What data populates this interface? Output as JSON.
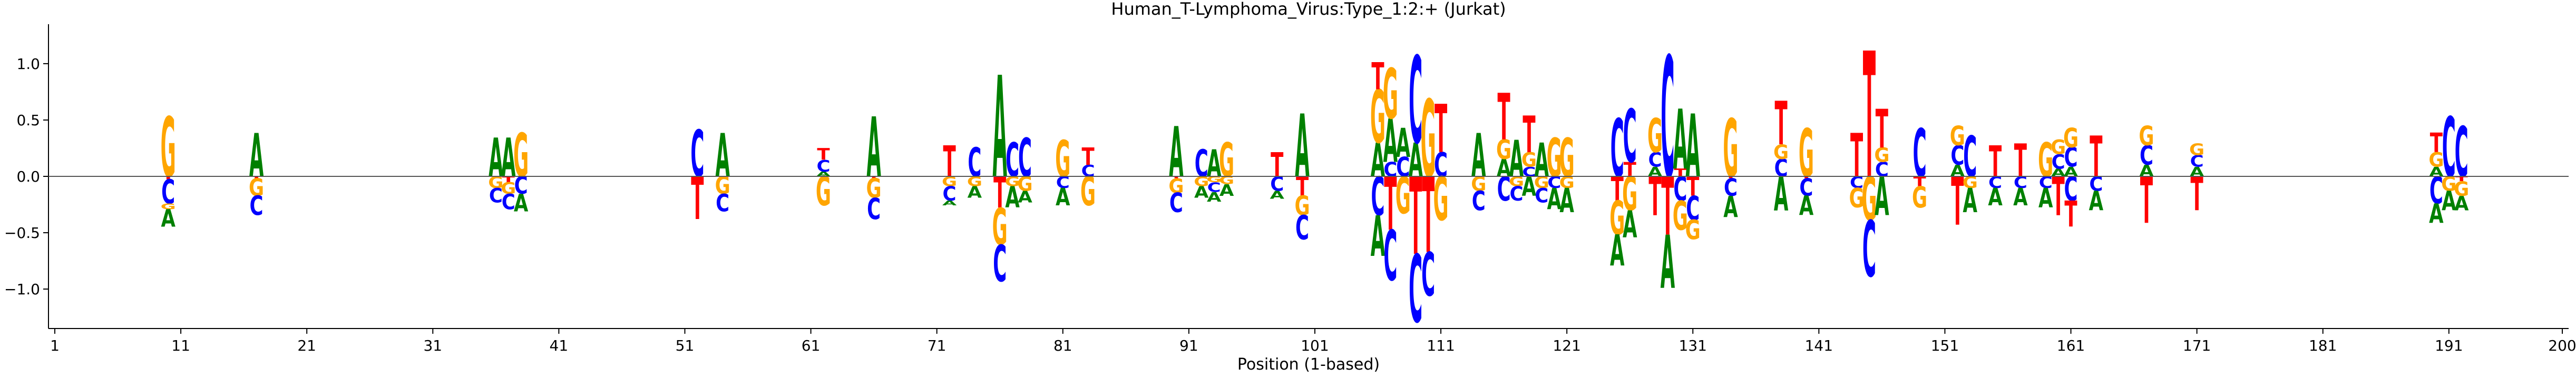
{
  "chart_data": {
    "type": "sequence_logo",
    "title": "Human_T-Lymphoma_Virus:Type_1:2:+  (Jurkat)",
    "xlabel": "Position (1-based)",
    "ylabel": "",
    "xlim": [
      1,
      200
    ],
    "ylim": [
      -1.35,
      1.35
    ],
    "x_ticks": [
      1,
      11,
      21,
      31,
      41,
      51,
      61,
      71,
      81,
      91,
      101,
      111,
      121,
      131,
      141,
      151,
      161,
      171,
      181,
      191,
      200
    ],
    "y_ticks": [
      -1.0,
      -0.5,
      0.0,
      0.5,
      1.0
    ],
    "y_tick_labels": [
      "−1.0",
      "−0.5",
      "0.0",
      "0.5",
      "1.0"
    ],
    "zero_line": true,
    "colors": {
      "A": "#008000",
      "C": "#0000ff",
      "G": "#ffa500",
      "T": "#ff0000"
    },
    "columns": [
      {
        "pos": 10,
        "up": [
          [
            "G",
            0.62
          ]
        ],
        "down": [
          [
            "T",
            0.03
          ],
          [
            "C",
            0.25
          ],
          [
            "G",
            0.06
          ],
          [
            "A",
            0.18
          ]
        ]
      },
      {
        "pos": 17,
        "up": [
          [
            "A",
            0.45
          ]
        ],
        "down": [
          [
            "T",
            0.02
          ],
          [
            "G",
            0.18
          ],
          [
            "C",
            0.2
          ]
        ]
      },
      {
        "pos": 36,
        "up": [
          [
            "A",
            0.4
          ]
        ],
        "down": [
          [
            "G",
            0.12
          ],
          [
            "C",
            0.15
          ]
        ]
      },
      {
        "pos": 37,
        "up": [
          [
            "A",
            0.4
          ]
        ],
        "down": [
          [
            "T",
            0.06
          ],
          [
            "G",
            0.12
          ],
          [
            "C",
            0.16
          ]
        ]
      },
      {
        "pos": 38,
        "up": [
          [
            "G",
            0.45
          ]
        ],
        "down": [
          [
            "C",
            0.18
          ],
          [
            "A",
            0.18
          ]
        ]
      },
      {
        "pos": 52,
        "up": [
          [
            "C",
            0.48
          ]
        ],
        "down": [
          [
            "T",
            0.44
          ]
        ]
      },
      {
        "pos": 54,
        "up": [
          [
            "A",
            0.45
          ]
        ],
        "down": [
          [
            "G",
            0.18
          ],
          [
            "C",
            0.18
          ]
        ]
      },
      {
        "pos": 62,
        "up": [
          [
            "A",
            0.05
          ],
          [
            "C",
            0.12
          ],
          [
            "T",
            0.12
          ]
        ],
        "down": [
          [
            "G",
            0.3
          ]
        ]
      },
      {
        "pos": 66,
        "up": [
          [
            "A",
            0.62
          ]
        ],
        "down": [
          [
            "T",
            0.02
          ],
          [
            "G",
            0.2
          ],
          [
            "C",
            0.22
          ]
        ]
      },
      {
        "pos": 72,
        "up": [
          [
            "T",
            0.32
          ]
        ],
        "down": [
          [
            "G",
            0.1
          ],
          [
            "C",
            0.15
          ],
          [
            "A",
            0.05
          ]
        ]
      },
      {
        "pos": 74,
        "up": [
          [
            "C",
            0.3
          ]
        ],
        "down": [
          [
            "G",
            0.1
          ],
          [
            "A",
            0.12
          ]
        ]
      },
      {
        "pos": 76,
        "up": [
          [
            "A",
            1.05
          ]
        ],
        "down": [
          [
            "T",
            0.32
          ],
          [
            "G",
            0.38
          ],
          [
            "C",
            0.38
          ]
        ]
      },
      {
        "pos": 77,
        "up": [
          [
            "C",
            0.35
          ]
        ],
        "down": [
          [
            "G",
            0.1
          ],
          [
            "A",
            0.22
          ]
        ]
      },
      {
        "pos": 78,
        "up": [
          [
            "C",
            0.4
          ]
        ],
        "down": [
          [
            "G",
            0.15
          ],
          [
            "A",
            0.12
          ]
        ]
      },
      {
        "pos": 81,
        "up": [
          [
            "G",
            0.38
          ]
        ],
        "down": [
          [
            "C",
            0.12
          ],
          [
            "A",
            0.18
          ]
        ]
      },
      {
        "pos": 83,
        "up": [
          [
            "C",
            0.12
          ],
          [
            "T",
            0.18
          ]
        ],
        "down": [
          [
            "G",
            0.3
          ]
        ]
      },
      {
        "pos": 90,
        "up": [
          [
            "A",
            0.52
          ]
        ],
        "down": [
          [
            "T",
            0.02
          ],
          [
            "G",
            0.15
          ],
          [
            "C",
            0.2
          ]
        ]
      },
      {
        "pos": 92,
        "up": [
          [
            "C",
            0.28
          ]
        ],
        "down": [
          [
            "G",
            0.1
          ],
          [
            "A",
            0.12
          ]
        ]
      },
      {
        "pos": 93,
        "up": [
          [
            "A",
            0.28
          ]
        ],
        "down": [
          [
            "G",
            0.06
          ],
          [
            "C",
            0.1
          ],
          [
            "A",
            0.1
          ]
        ]
      },
      {
        "pos": 94,
        "up": [
          [
            "G",
            0.35
          ]
        ],
        "down": [
          [
            "G",
            0.08
          ],
          [
            "A",
            0.12
          ]
        ]
      },
      {
        "pos": 98,
        "up": [
          [
            "T",
            0.25
          ]
        ],
        "down": [
          [
            "C",
            0.15
          ],
          [
            "A",
            0.08
          ]
        ]
      },
      {
        "pos": 100,
        "up": [
          [
            "A",
            0.65
          ]
        ],
        "down": [
          [
            "T",
            0.2
          ],
          [
            "G",
            0.2
          ],
          [
            "C",
            0.25
          ]
        ]
      },
      {
        "pos": 106,
        "up": [
          [
            "A",
            0.35
          ],
          [
            "G",
            0.55
          ],
          [
            "T",
            0.28
          ]
        ],
        "down": [
          [
            "C",
            0.4
          ],
          [
            "A",
            0.42
          ]
        ]
      },
      {
        "pos": 107,
        "up": [
          [
            "C",
            0.15
          ],
          [
            "A",
            0.45
          ],
          [
            "G",
            0.52
          ]
        ],
        "down": [
          [
            "T",
            0.55
          ],
          [
            "C",
            0.52
          ]
        ]
      },
      {
        "pos": 108,
        "up": [
          [
            "C",
            0.2
          ],
          [
            "A",
            0.3
          ]
        ],
        "down": [
          [
            "G",
            0.38
          ]
        ]
      },
      {
        "pos": 109,
        "up": [
          [
            "A",
            0.35
          ],
          [
            "C",
            0.9
          ]
        ],
        "down": [
          [
            "T",
            0.8
          ],
          [
            "C",
            0.7
          ]
        ]
      },
      {
        "pos": 110,
        "up": [
          [
            "G",
            0.8
          ]
        ],
        "down": [
          [
            "T",
            0.78
          ],
          [
            "C",
            0.45
          ]
        ]
      },
      {
        "pos": 111,
        "up": [
          [
            "C",
            0.25
          ],
          [
            "T",
            0.5
          ]
        ],
        "down": [
          [
            "G",
            0.45
          ]
        ]
      },
      {
        "pos": 114,
        "up": [
          [
            "A",
            0.45
          ]
        ],
        "down": [
          [
            "G",
            0.15
          ],
          [
            "C",
            0.2
          ]
        ]
      },
      {
        "pos": 116,
        "up": [
          [
            "A",
            0.18
          ],
          [
            "G",
            0.2
          ],
          [
            "T",
            0.48
          ]
        ],
        "down": [
          [
            "C",
            0.25
          ]
        ]
      },
      {
        "pos": 117,
        "up": [
          [
            "A",
            0.38
          ]
        ],
        "down": [
          [
            "G",
            0.1
          ],
          [
            "C",
            0.15
          ]
        ]
      },
      {
        "pos": 118,
        "up": [
          [
            "C",
            0.1
          ],
          [
            "G",
            0.15
          ],
          [
            "T",
            0.38
          ]
        ],
        "down": [
          [
            "A",
            0.2
          ]
        ]
      },
      {
        "pos": 119,
        "up": [
          [
            "A",
            0.35
          ]
        ],
        "down": [
          [
            "G",
            0.12
          ],
          [
            "C",
            0.15
          ]
        ]
      },
      {
        "pos": 120,
        "up": [
          [
            "G",
            0.4
          ]
        ],
        "down": [
          [
            "C",
            0.12
          ],
          [
            "A",
            0.22
          ]
        ]
      },
      {
        "pos": 121,
        "up": [
          [
            "G",
            0.4
          ]
        ],
        "down": [
          [
            "G",
            0.12
          ],
          [
            "A",
            0.25
          ]
        ]
      },
      {
        "pos": 125,
        "up": [
          [
            "C",
            0.6
          ]
        ],
        "down": [
          [
            "T",
            0.25
          ],
          [
            "G",
            0.35
          ],
          [
            "A",
            0.32
          ]
        ]
      },
      {
        "pos": 126,
        "up": [
          [
            "T",
            0.15
          ],
          [
            "C",
            0.55
          ]
        ],
        "down": [
          [
            "G",
            0.35
          ],
          [
            "A",
            0.28
          ]
        ]
      },
      {
        "pos": 128,
        "up": [
          [
            "A",
            0.1
          ],
          [
            "C",
            0.15
          ],
          [
            "G",
            0.35
          ]
        ],
        "down": [
          [
            "T",
            0.4
          ]
        ]
      },
      {
        "pos": 129,
        "up": [
          [
            "C",
            1.25
          ]
        ],
        "down": [
          [
            "T",
            0.6
          ],
          [
            "A",
            0.55
          ]
        ]
      },
      {
        "pos": 130,
        "up": [
          [
            "T",
            0.08
          ],
          [
            "A",
            0.62
          ]
        ],
        "down": [
          [
            "C",
            0.25
          ],
          [
            "G",
            0.3
          ]
        ]
      },
      {
        "pos": 131,
        "up": [
          [
            "A",
            0.65
          ]
        ],
        "down": [
          [
            "T",
            0.2
          ],
          [
            "C",
            0.25
          ],
          [
            "G",
            0.2
          ]
        ]
      },
      {
        "pos": 134,
        "up": [
          [
            "G",
            0.6
          ]
        ],
        "down": [
          [
            "T",
            0.02
          ],
          [
            "C",
            0.18
          ],
          [
            "A",
            0.22
          ]
        ]
      },
      {
        "pos": 138,
        "up": [
          [
            "C",
            0.18
          ],
          [
            "G",
            0.15
          ],
          [
            "T",
            0.45
          ]
        ],
        "down": [
          [
            "A",
            0.35
          ]
        ]
      },
      {
        "pos": 140,
        "up": [
          [
            "G",
            0.5
          ]
        ],
        "down": [
          [
            "T",
            0.02
          ],
          [
            "C",
            0.18
          ],
          [
            "A",
            0.2
          ]
        ]
      },
      {
        "pos": 144,
        "up": [
          [
            "T",
            0.45
          ]
        ],
        "down": [
          [
            "C",
            0.12
          ],
          [
            "G",
            0.2
          ]
        ]
      },
      {
        "pos": 145,
        "up": [
          [
            "T",
            1.3
          ]
        ],
        "down": [
          [
            "G",
            0.45
          ],
          [
            "C",
            0.58
          ]
        ]
      },
      {
        "pos": 146,
        "up": [
          [
            "C",
            0.15
          ],
          [
            "G",
            0.15
          ],
          [
            "T",
            0.4
          ]
        ],
        "down": [
          [
            "A",
            0.4
          ]
        ]
      },
      {
        "pos": 149,
        "up": [
          [
            "C",
            0.5
          ]
        ],
        "down": [
          [
            "T",
            0.1
          ],
          [
            "G",
            0.22
          ]
        ]
      },
      {
        "pos": 152,
        "up": [
          [
            "A",
            0.12
          ],
          [
            "C",
            0.2
          ],
          [
            "G",
            0.2
          ]
        ],
        "down": [
          [
            "T",
            0.5
          ]
        ]
      },
      {
        "pos": 153,
        "up": [
          [
            "C",
            0.42
          ]
        ],
        "down": [
          [
            "G",
            0.12
          ],
          [
            "A",
            0.25
          ]
        ]
      },
      {
        "pos": 155,
        "up": [
          [
            "T",
            0.32
          ]
        ],
        "down": [
          [
            "C",
            0.12
          ],
          [
            "A",
            0.18
          ]
        ]
      },
      {
        "pos": 157,
        "up": [
          [
            "T",
            0.34
          ]
        ],
        "down": [
          [
            "C",
            0.12
          ],
          [
            "A",
            0.18
          ]
        ]
      },
      {
        "pos": 159,
        "up": [
          [
            "G",
            0.35
          ]
        ],
        "down": [
          [
            "C",
            0.12
          ],
          [
            "A",
            0.2
          ]
        ]
      },
      {
        "pos": 160,
        "up": [
          [
            "A",
            0.08
          ],
          [
            "C",
            0.15
          ],
          [
            "G",
            0.15
          ]
        ],
        "down": [
          [
            "T",
            0.4
          ]
        ]
      },
      {
        "pos": 161,
        "up": [
          [
            "A",
            0.1
          ],
          [
            "C",
            0.2
          ],
          [
            "G",
            0.2
          ]
        ],
        "down": [
          [
            "C",
            0.25
          ],
          [
            "T",
            0.27
          ]
        ]
      },
      {
        "pos": 163,
        "up": [
          [
            "T",
            0.42
          ]
        ],
        "down": [
          [
            "C",
            0.15
          ],
          [
            "A",
            0.2
          ]
        ]
      },
      {
        "pos": 167,
        "up": [
          [
            "A",
            0.12
          ],
          [
            "C",
            0.2
          ],
          [
            "G",
            0.2
          ]
        ],
        "down": [
          [
            "T",
            0.48
          ]
        ]
      },
      {
        "pos": 171,
        "up": [
          [
            "A",
            0.1
          ],
          [
            "C",
            0.12
          ],
          [
            "G",
            0.12
          ]
        ],
        "down": [
          [
            "T",
            0.35
          ]
        ]
      },
      {
        "pos": 190,
        "up": [
          [
            "A",
            0.1
          ],
          [
            "G",
            0.15
          ],
          [
            "T",
            0.2
          ]
        ],
        "down": [
          [
            "C",
            0.28
          ],
          [
            "A",
            0.2
          ]
        ]
      },
      {
        "pos": 191,
        "up": [
          [
            "C",
            0.62
          ]
        ],
        "down": [
          [
            "G",
            0.15
          ],
          [
            "A",
            0.2
          ]
        ]
      },
      {
        "pos": 192,
        "up": [
          [
            "C",
            0.52
          ]
        ],
        "down": [
          [
            "T",
            0.05
          ],
          [
            "G",
            0.15
          ],
          [
            "A",
            0.15
          ]
        ]
      }
    ]
  }
}
